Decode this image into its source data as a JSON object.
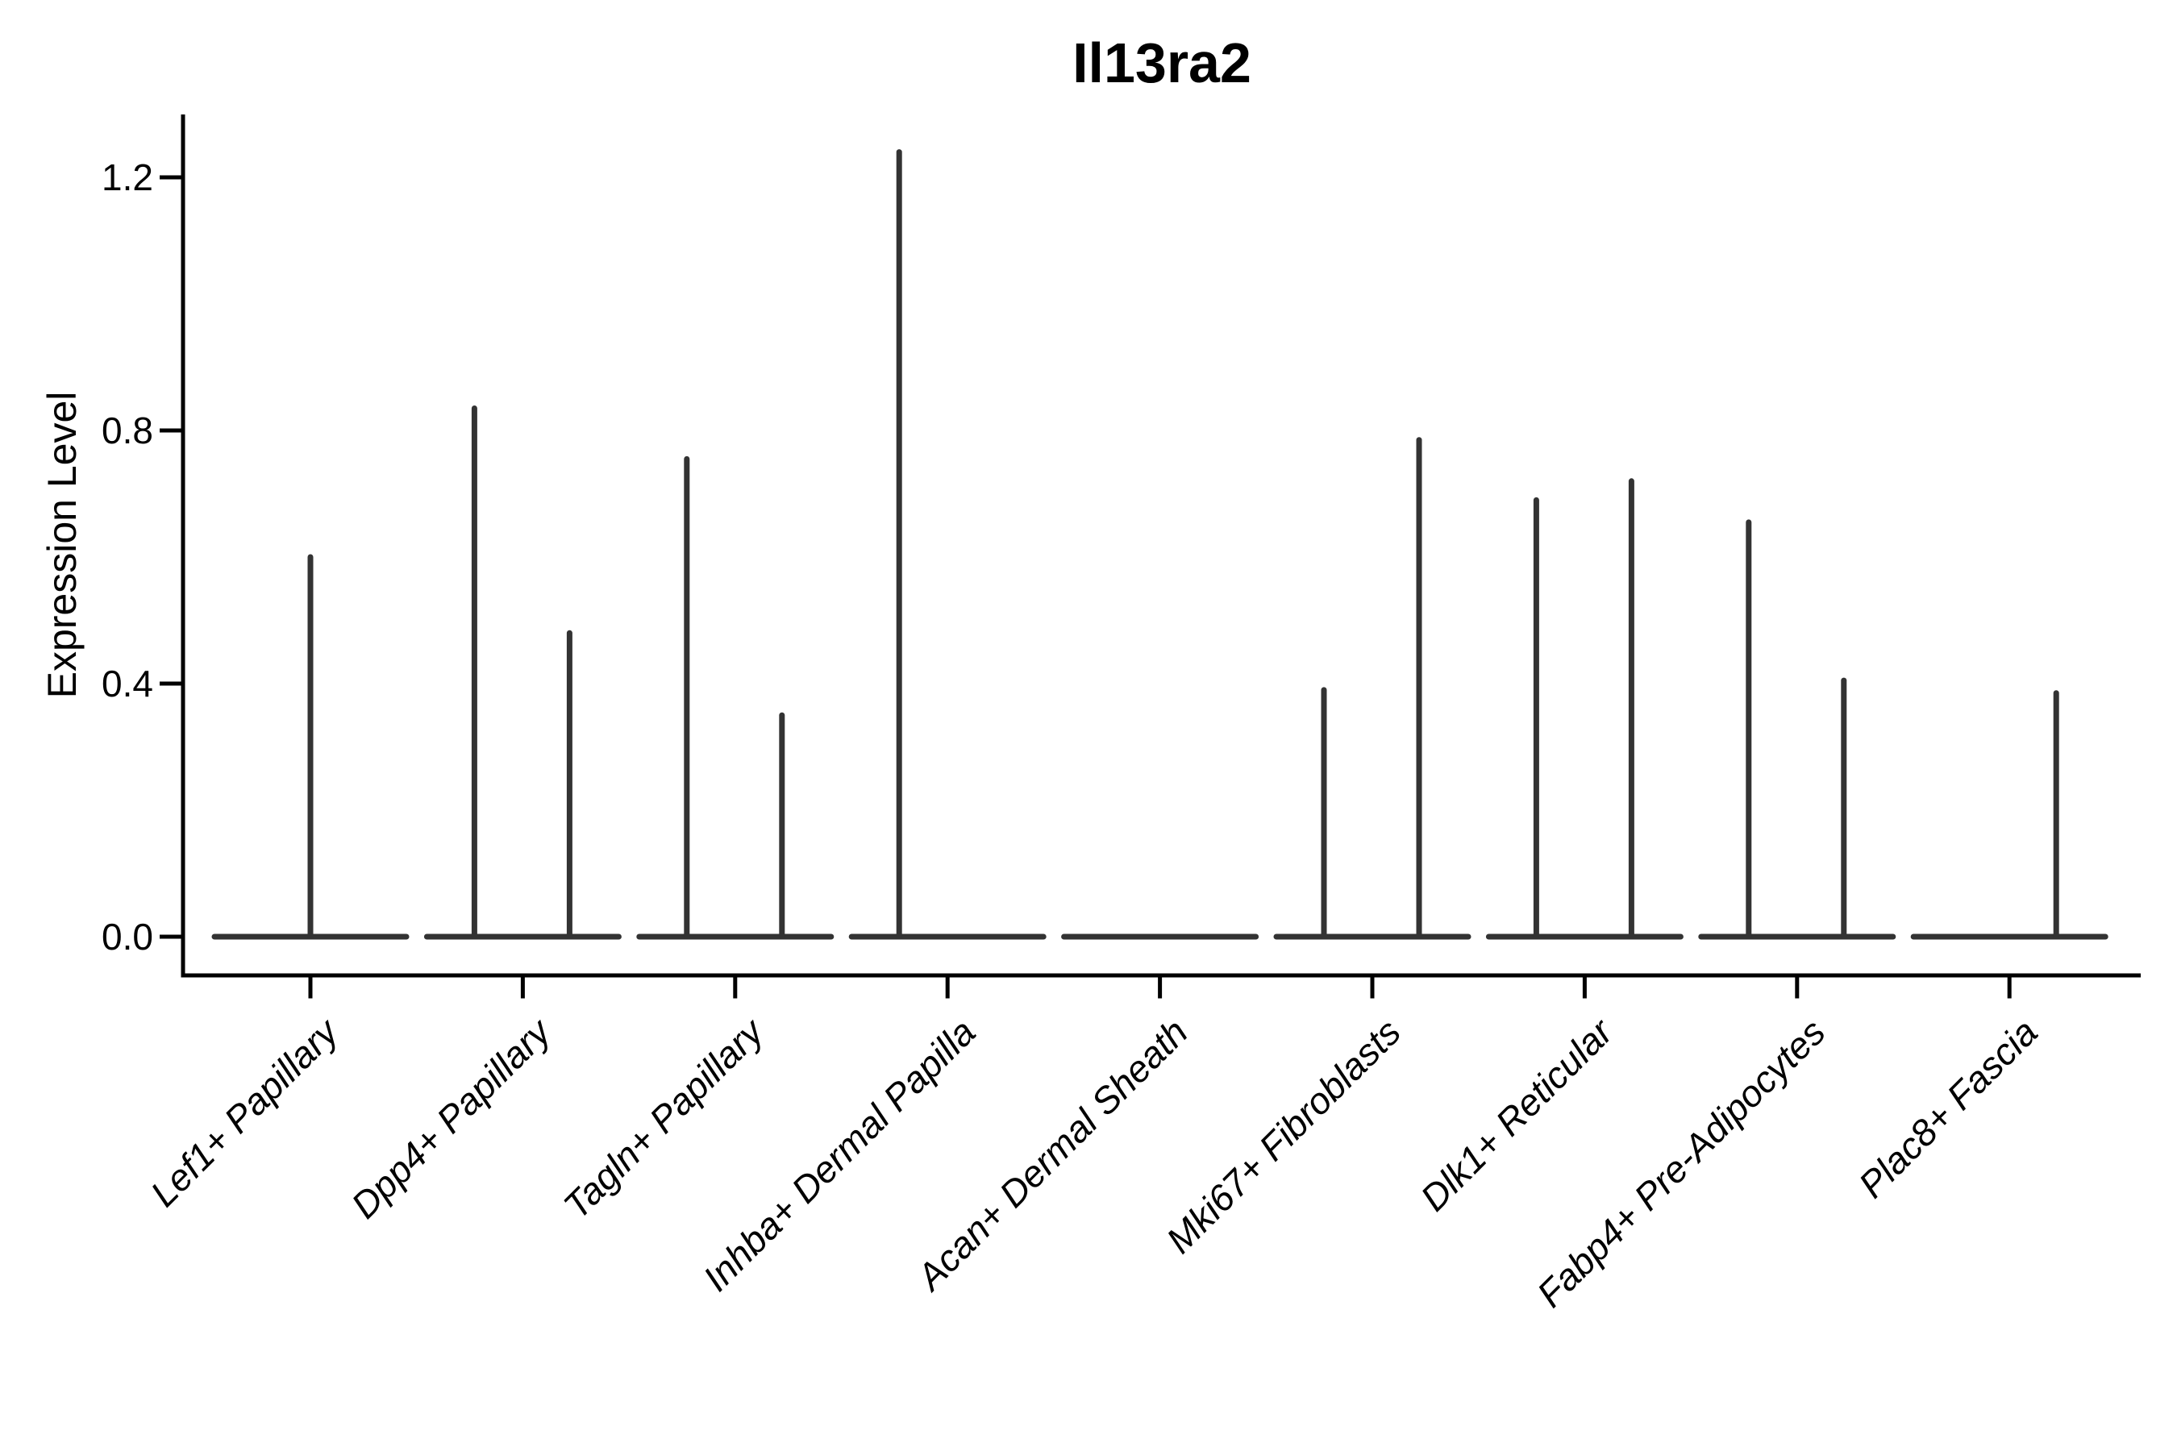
{
  "chart_data": {
    "type": "violin",
    "title": "Il13ra2",
    "ylabel": "Expression Level",
    "xlabel": "",
    "ylim": [
      -0.06,
      1.3
    ],
    "grid": false,
    "legend": false,
    "yticks": [
      {
        "value": 0.0,
        "label": "0.0"
      },
      {
        "value": 0.4,
        "label": "0.4"
      },
      {
        "value": 0.8,
        "label": "0.8"
      },
      {
        "value": 1.2,
        "label": "1.2"
      }
    ],
    "style": {
      "violin_color": "#333333",
      "axis_color": "#000000",
      "text_color": "#000000",
      "background": "#ffffff",
      "x_label_angle_deg": 45,
      "x_labels_italic": true
    },
    "categories": [
      "Lef1+ Papillary",
      "Dpp4+ Papillary",
      "Tagln+ Papillary",
      "Inhba+ Dermal Papilla",
      "Acan+ Dermal Sheath",
      "Mki67+ Fibroblasts",
      "Dlk1+ Reticular",
      "Fabp4+ Pre-Adipocytes",
      "Plac8+ Fascia"
    ],
    "violins": [
      {
        "category": "Lef1+ Papillary",
        "baseline": 0.0,
        "parts": [
          {
            "position": "center",
            "max_expression": 0.6
          }
        ]
      },
      {
        "category": "Dpp4+ Papillary",
        "baseline": 0.0,
        "parts": [
          {
            "position": "left",
            "max_expression": 0.835
          },
          {
            "position": "right",
            "max_expression": 0.48
          }
        ]
      },
      {
        "category": "Tagln+ Papillary",
        "baseline": 0.0,
        "parts": [
          {
            "position": "left",
            "max_expression": 0.755
          },
          {
            "position": "right",
            "max_expression": 0.35
          }
        ]
      },
      {
        "category": "Inhba+ Dermal Papilla",
        "baseline": 0.0,
        "parts": [
          {
            "position": "left",
            "max_expression": 1.24
          },
          {
            "position": "right",
            "max_expression": 0.0
          }
        ]
      },
      {
        "category": "Acan+ Dermal Sheath",
        "baseline": 0.0,
        "parts": []
      },
      {
        "category": "Mki67+ Fibroblasts",
        "baseline": 0.0,
        "parts": [
          {
            "position": "left",
            "max_expression": 0.39
          },
          {
            "position": "right",
            "max_expression": 0.785
          }
        ]
      },
      {
        "category": "Dlk1+ Reticular",
        "baseline": 0.0,
        "parts": [
          {
            "position": "left",
            "max_expression": 0.69
          },
          {
            "position": "right",
            "max_expression": 0.72
          }
        ]
      },
      {
        "category": "Fabp4+ Pre-Adipocytes",
        "baseline": 0.0,
        "parts": [
          {
            "position": "left",
            "max_expression": 0.655
          },
          {
            "position": "right",
            "max_expression": 0.405
          }
        ]
      },
      {
        "category": "Plac8+ Fascia",
        "baseline": 0.0,
        "parts": [
          {
            "position": "left",
            "max_expression": 0.0
          },
          {
            "position": "right",
            "max_expression": 0.385
          }
        ]
      }
    ]
  }
}
